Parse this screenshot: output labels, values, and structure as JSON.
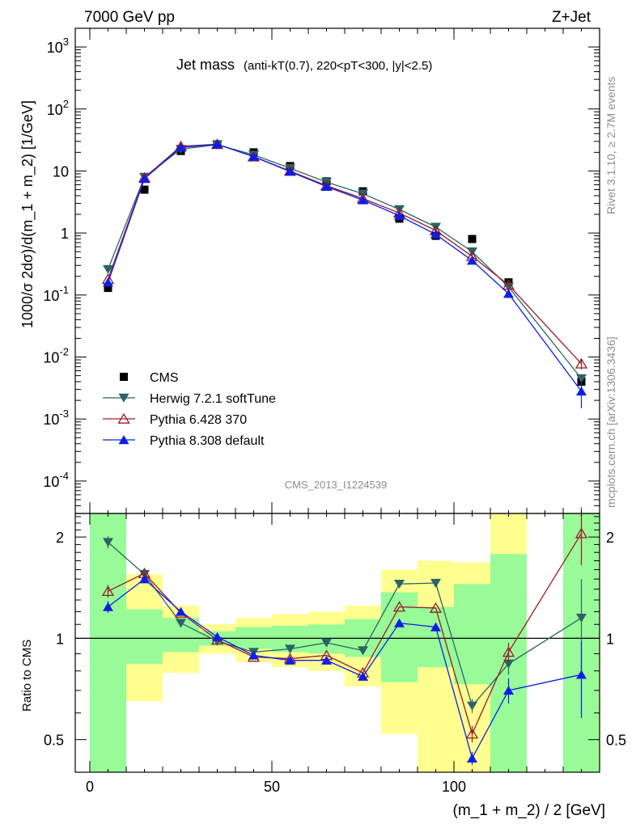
{
  "header": {
    "left_label": "7000 GeV pp",
    "right_label": "Z+Jet",
    "side_label_rivet": "Rivet 3.1.10, ≥ 2.7M events",
    "side_label_mcplots": "mcplots.cern.ch [arXiv:1306.3436]",
    "analysis_id": "CMS_2013_I1224539"
  },
  "colors": {
    "cms": "#000000",
    "herwig": "#2a6466",
    "pythia6": "#9a1a2a",
    "pythia8": "#0f1ee6",
    "band_green": "#98fb98",
    "band_yellow": "#ffff90"
  },
  "chart_data": [
    {
      "type": "line",
      "panel": "main",
      "title": "Jet mass",
      "title_detail": "(anti-kT(0.7), 220<pT<300, |y|<2.5)",
      "ylabel": "1000/σ 2dσ)/d(m_1 + m_2) [1/GeV]",
      "xlim": [
        -4,
        140
      ],
      "ylim": [
        3e-05,
        2000
      ],
      "yscale": "log",
      "y_ticks": [
        "10^-4",
        "10^-3",
        "10^-2",
        "10^-1",
        "1",
        "10",
        "10^2",
        "10^3"
      ],
      "grid": false,
      "legend_position": "bottom-left",
      "x": [
        5,
        15,
        25,
        35,
        45,
        55,
        65,
        75,
        85,
        95,
        105,
        115,
        135
      ],
      "series": [
        {
          "name": "CMS",
          "marker": "square",
          "line": false,
          "values": [
            0.13,
            5.0,
            21.0,
            27.0,
            20.0,
            12.0,
            6.8,
            4.7,
            1.7,
            0.9,
            0.8,
            0.16,
            0.004
          ],
          "errors": [
            0,
            0,
            0,
            0,
            0,
            0,
            0,
            0,
            0,
            0,
            0,
            0,
            0
          ]
        },
        {
          "name": "Herwig 7.2.1 softTune",
          "marker": "triangle-down",
          "line": true,
          "values": [
            0.26,
            8.0,
            22.5,
            26.5,
            18.2,
            11.1,
            6.6,
            4.3,
            2.4,
            1.25,
            0.5,
            0.135,
            0.0045
          ],
          "errors": [
            0,
            0,
            0,
            0,
            0,
            0,
            0,
            0,
            0,
            0,
            0,
            0,
            0.0007
          ]
        },
        {
          "name": "Pythia 6.428 370",
          "marker": "triangle-open",
          "line": true,
          "values": [
            0.18,
            7.8,
            25.0,
            27.0,
            17.0,
            10.0,
            5.8,
            3.6,
            2.1,
            1.1,
            0.42,
            0.145,
            0.0078
          ],
          "errors": [
            0,
            0,
            0,
            0,
            0,
            0,
            0,
            0,
            0,
            0,
            0,
            0,
            0.0015
          ]
        },
        {
          "name": "Pythia 8.308 default",
          "marker": "triangle-up",
          "line": true,
          "values": [
            0.16,
            7.5,
            24.0,
            27.0,
            17.0,
            9.8,
            5.6,
            3.4,
            1.9,
            0.95,
            0.36,
            0.105,
            0.0028
          ],
          "errors": [
            0,
            0,
            0,
            0,
            0,
            0,
            0,
            0,
            0,
            0,
            0,
            0,
            0.0013
          ]
        }
      ]
    },
    {
      "type": "line",
      "panel": "ratio",
      "ylabel": "Ratio to CMS",
      "xlabel": "(m_1 + m_2) / 2 [GeV]",
      "xlim": [
        -4,
        140
      ],
      "ylim": [
        0.4,
        2.35
      ],
      "yscale": "log",
      "y_ticks": [
        0.5,
        1,
        2
      ],
      "x_ticks": [
        0,
        50,
        100
      ],
      "reference_line": 1,
      "bands": [
        {
          "x_range": [
            0,
            10
          ],
          "green": [
            0.4,
            2.35
          ],
          "yellow": [
            0.4,
            2.35
          ]
        },
        {
          "x_range": [
            10,
            20
          ],
          "green": [
            0.84,
            1.22
          ],
          "yellow": [
            0.65,
            1.55
          ]
        },
        {
          "x_range": [
            20,
            30
          ],
          "green": [
            0.91,
            1.15
          ],
          "yellow": [
            0.79,
            1.25
          ]
        },
        {
          "x_range": [
            30,
            40
          ],
          "green": [
            0.95,
            1.05
          ],
          "yellow": [
            0.9,
            1.1
          ]
        },
        {
          "x_range": [
            40,
            50
          ],
          "green": [
            0.93,
            1.08
          ],
          "yellow": [
            0.85,
            1.15
          ]
        },
        {
          "x_range": [
            50,
            60
          ],
          "green": [
            0.91,
            1.09
          ],
          "yellow": [
            0.82,
            1.18
          ]
        },
        {
          "x_range": [
            60,
            70
          ],
          "green": [
            0.9,
            1.1
          ],
          "yellow": [
            0.8,
            1.2
          ]
        },
        {
          "x_range": [
            70,
            80
          ],
          "green": [
            0.88,
            1.14
          ],
          "yellow": [
            0.72,
            1.25
          ]
        },
        {
          "x_range": [
            80,
            90
          ],
          "green": [
            0.74,
            1.37
          ],
          "yellow": [
            0.52,
            1.6
          ]
        },
        {
          "x_range": [
            90,
            100
          ],
          "green": [
            0.82,
            1.24
          ],
          "yellow": [
            0.4,
            1.7
          ]
        },
        {
          "x_range": [
            100,
            110
          ],
          "green": [
            0.73,
            1.45
          ],
          "yellow": [
            0.4,
            1.68
          ]
        },
        {
          "x_range": [
            110,
            120
          ],
          "green": [
            0.4,
            1.78
          ],
          "yellow": [
            0.4,
            2.35
          ]
        },
        {
          "x_range": [
            130,
            140
          ],
          "green": [
            0.4,
            2.35
          ],
          "yellow": [
            0.4,
            2.35
          ]
        }
      ],
      "series": [
        {
          "name": "Herwig 7.2.1 softTune",
          "x": [
            5,
            15,
            25,
            35,
            45,
            55,
            65,
            75,
            85,
            95,
            105,
            115,
            135
          ],
          "values": [
            1.93,
            1.55,
            1.11,
            0.98,
            0.91,
            0.93,
            0.97,
            0.92,
            1.45,
            1.46,
            0.63,
            0.84,
            1.15
          ],
          "errors": [
            0.08,
            0,
            0,
            0,
            0,
            0,
            0,
            0,
            0,
            0,
            0.03,
            0.06,
            0.35
          ]
        },
        {
          "name": "Pythia 6.428 370",
          "x": [
            5,
            15,
            25,
            35,
            45,
            55,
            65,
            75,
            85,
            95,
            105,
            115,
            135
          ],
          "values": [
            1.38,
            1.56,
            1.19,
            0.99,
            0.88,
            0.87,
            0.89,
            0.79,
            1.24,
            1.23,
            0.52,
            0.91,
            2.05
          ],
          "errors": [
            0.06,
            0,
            0,
            0,
            0,
            0,
            0,
            0,
            0,
            0,
            0.03,
            0.06,
            0.4
          ]
        },
        {
          "name": "Pythia 8.308 default",
          "x": [
            5,
            15,
            25,
            35,
            45,
            55,
            65,
            75,
            85,
            95,
            105,
            115,
            135
          ],
          "values": [
            1.24,
            1.5,
            1.2,
            1.01,
            0.89,
            0.86,
            0.86,
            0.77,
            1.11,
            1.08,
            0.44,
            0.7,
            0.78
          ],
          "errors": [
            0.05,
            0,
            0,
            0,
            0,
            0,
            0,
            0,
            0,
            0,
            0.02,
            0.06,
            0.2
          ]
        }
      ]
    }
  ]
}
